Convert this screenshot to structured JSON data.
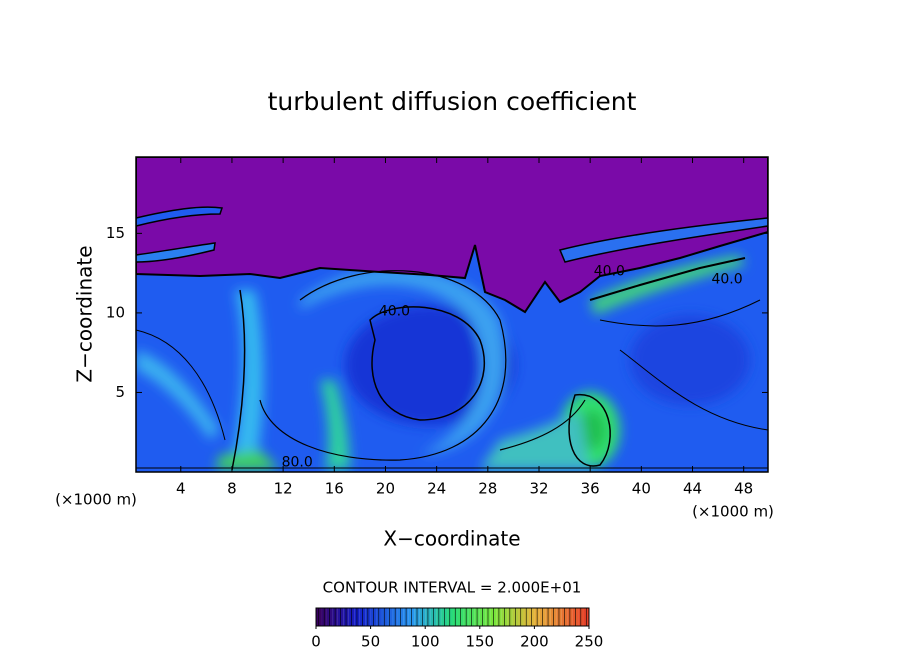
{
  "chart_data": {
    "type": "contour",
    "title": "turbulent diffusion coefficient",
    "x_label": "X−coordinate",
    "y_label": "Z−coordinate",
    "x_unit_label": "(×1000 m)",
    "y_unit_label": "(×1000 m)",
    "xlim": [
      0.5,
      49.9
    ],
    "ylim": [
      0,
      19.8
    ],
    "xticks": [
      4,
      8,
      12,
      16,
      20,
      24,
      28,
      32,
      36,
      40,
      44,
      48
    ],
    "yticks": [
      5,
      10,
      15
    ],
    "contour_interval_label": "CONTOUR INTERVAL = 2.000E+01",
    "colorbar": {
      "lim": [
        0,
        250
      ],
      "ticks": [
        0,
        50,
        100,
        150,
        200,
        250
      ]
    },
    "contour_labels": [
      {
        "text": "40.0",
        "x": 20.7,
        "y": 10.1
      },
      {
        "text": "80.0",
        "x": 13.1,
        "y": 0.6
      },
      {
        "text": "40.0",
        "x": 37.5,
        "y": 12.6
      },
      {
        "text": "40.0",
        "x": 46.7,
        "y": 12.1
      }
    ]
  }
}
